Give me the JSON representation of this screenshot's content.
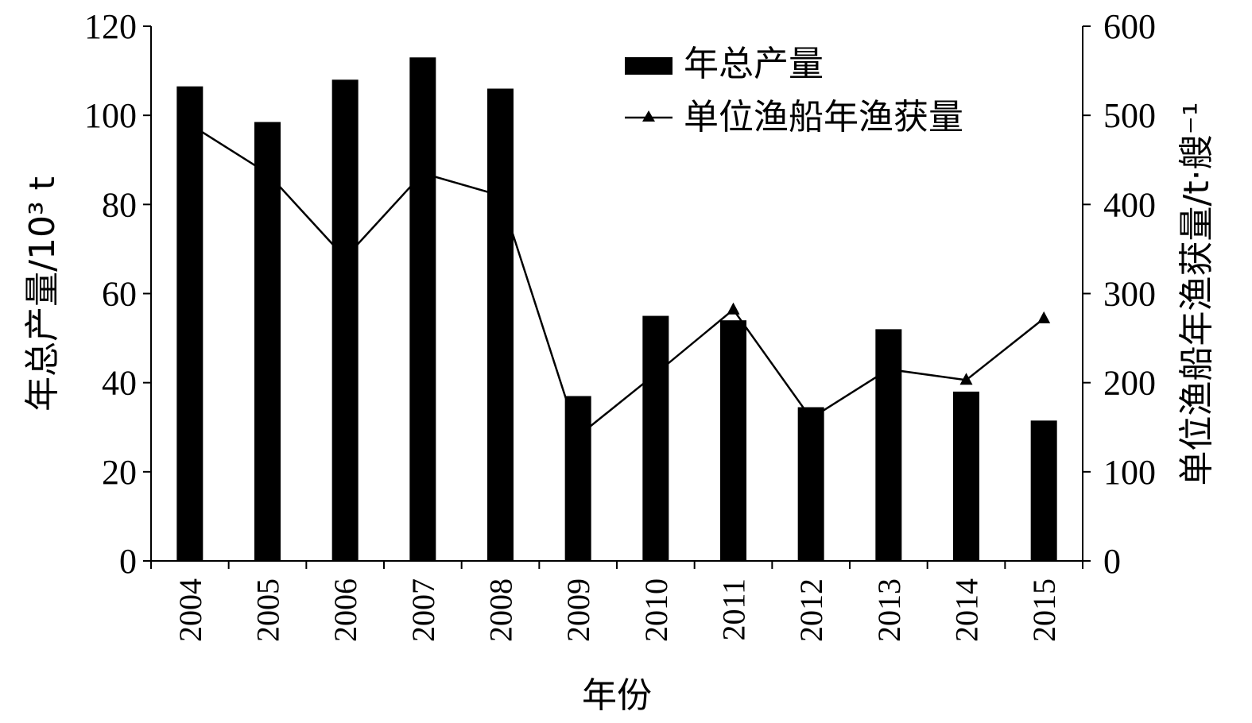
{
  "chart_data": {
    "type": "bar",
    "categories": [
      "2004",
      "2005",
      "2006",
      "2007",
      "2008",
      "2009",
      "2010",
      "2011",
      "2012",
      "2013",
      "2014",
      "2015"
    ],
    "series": [
      {
        "name": "年总产量",
        "type": "bar",
        "axis": "left",
        "values": [
          106.5,
          98.5,
          108,
          113,
          106,
          37,
          55,
          54,
          34.5,
          52,
          38,
          31.5
        ]
      },
      {
        "name": "单位渔船年渔获量",
        "type": "line",
        "axis": "right",
        "marker": "triangle",
        "values": [
          490,
          435,
          340,
          435,
          410,
          140,
          210,
          282,
          160,
          215,
          203,
          272
        ]
      }
    ],
    "title": "",
    "xlabel": "年份",
    "ylabel_left": "年总产量/10³ t",
    "ylabel_right": "单位渔船年渔获量/t·艘⁻¹",
    "ylim_left": [
      0,
      120
    ],
    "ylim_right": [
      0,
      600
    ],
    "yticks_left": [
      "0",
      "20",
      "40",
      "60",
      "80",
      "100",
      "120"
    ],
    "yticks_right": [
      "0",
      "100",
      "200",
      "300",
      "400",
      "500",
      "600"
    ],
    "legend_position": "top-center",
    "grid": false,
    "colors": {
      "bars": "#000000",
      "line": "#000000"
    }
  }
}
